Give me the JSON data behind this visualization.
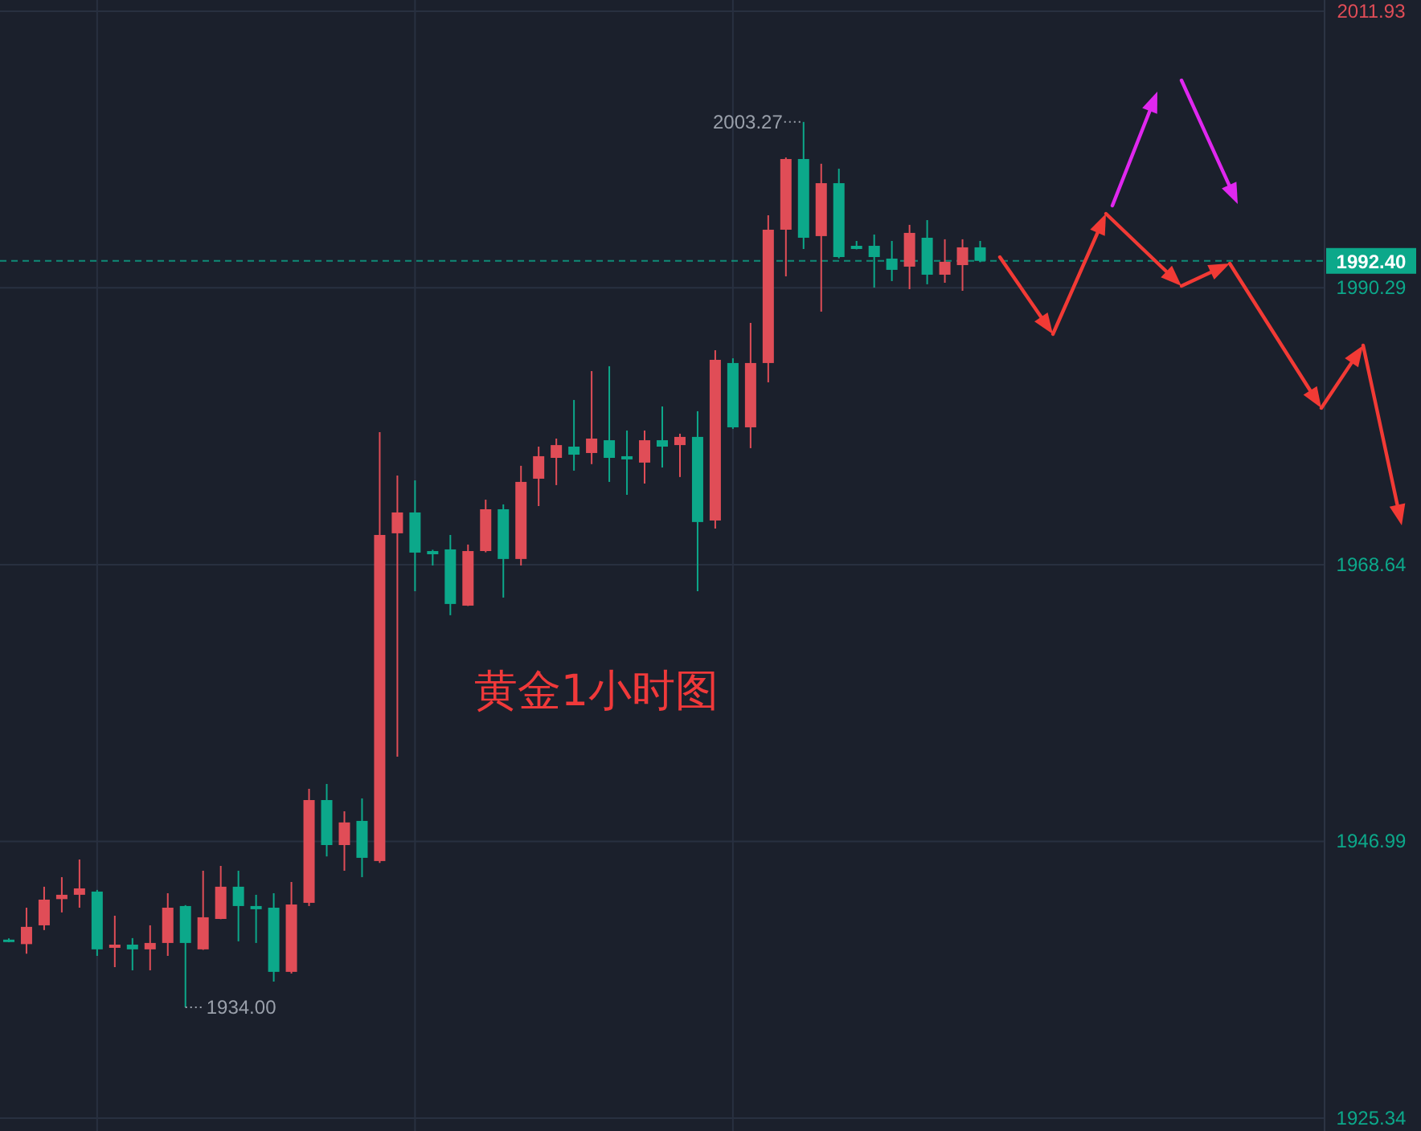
{
  "chart_data": {
    "type": "candlestick",
    "categories": [
      null,
      null,
      null,
      null,
      null,
      null,
      null,
      null,
      null,
      null,
      null,
      null,
      null,
      null,
      null,
      null,
      null,
      null,
      null,
      null,
      null,
      null,
      null,
      null,
      null,
      null,
      null,
      null,
      null,
      null,
      null,
      null,
      null,
      null,
      null,
      null,
      null,
      null,
      null,
      null,
      null,
      null,
      null,
      null,
      null,
      null,
      null,
      null,
      null,
      null,
      null,
      null,
      null,
      null,
      null,
      null,
      null,
      null,
      null,
      null,
      null,
      null,
      null,
      null,
      null,
      null,
      null,
      null,
      null,
      null,
      null,
      null,
      null,
      null,
      null
    ],
    "ohlc": [
      [
        1939.3,
        1939.4,
        1939.1,
        1939.2
      ],
      [
        1938.95,
        1941.8,
        1938.2,
        1940.3
      ],
      [
        1940.42,
        1943.44,
        1940.05,
        1942.43
      ],
      [
        1942.47,
        1944.19,
        1941.43,
        1942.81
      ],
      [
        1942.81,
        1945.57,
        1941.8,
        1943.31
      ],
      [
        1943.06,
        1943.19,
        1938.03,
        1938.54
      ],
      [
        1938.66,
        1941.17,
        1937.15,
        1938.91
      ],
      [
        1938.91,
        1939.42,
        1936.9,
        1938.54
      ],
      [
        1938.54,
        1940.42,
        1936.9,
        1939.04
      ],
      [
        1939.04,
        1942.93,
        1938.03,
        1941.8
      ],
      [
        1941.93,
        1942.0,
        1934.0,
        1939.04
      ],
      [
        1938.54,
        1944.69,
        1938.5,
        1941.05
      ],
      [
        1940.92,
        1945.07,
        1940.9,
        1943.44
      ],
      [
        1943.44,
        1944.69,
        1939.17,
        1941.93
      ],
      [
        1941.93,
        1942.81,
        1939.04,
        1941.68
      ],
      [
        1941.8,
        1942.93,
        1936.02,
        1936.78
      ],
      [
        1936.78,
        1943.81,
        1936.65,
        1942.05
      ],
      [
        1942.18,
        1951.1,
        1941.93,
        1950.22
      ],
      [
        1950.22,
        1951.48,
        1945.81,
        1946.7
      ],
      [
        1946.7,
        1949.34,
        1944.69,
        1948.47
      ],
      [
        1948.59,
        1950.35,
        1944.19,
        1945.7
      ],
      [
        1945.45,
        1979.0,
        1945.3,
        1970.96
      ],
      [
        1971.09,
        1975.61,
        1953.62,
        1972.72
      ],
      [
        1972.72,
        1975.23,
        1966.56,
        1969.58
      ],
      [
        1969.7,
        1969.8,
        1968.57,
        1969.45
      ],
      [
        1969.83,
        1970.96,
        1964.68,
        1965.56
      ],
      [
        1965.43,
        1970.21,
        1965.4,
        1969.7
      ],
      [
        1969.7,
        1973.72,
        1969.6,
        1972.97
      ],
      [
        1972.97,
        1973.35,
        1966.06,
        1969.08
      ],
      [
        1969.08,
        1976.37,
        1968.57,
        1975.11
      ],
      [
        1975.36,
        1977.87,
        1973.22,
        1977.12
      ],
      [
        1976.99,
        1978.5,
        1974.86,
        1977.99
      ],
      [
        1977.87,
        1981.52,
        1975.99,
        1977.24
      ],
      [
        1977.37,
        1983.78,
        1976.5,
        1978.5
      ],
      [
        1978.37,
        1984.16,
        1975.11,
        1976.99
      ],
      [
        1977.12,
        1979.13,
        1974.1,
        1976.87
      ],
      [
        1976.62,
        1979.13,
        1974.98,
        1978.37
      ],
      [
        1978.37,
        1981.02,
        1976.24,
        1977.87
      ],
      [
        1977.99,
        1978.88,
        1975.49,
        1978.63
      ],
      [
        1978.63,
        1980.64,
        1966.56,
        1971.97
      ],
      [
        1972.09,
        1985.41,
        1971.46,
        1984.66
      ],
      [
        1984.41,
        1984.78,
        1979.26,
        1979.38
      ],
      [
        1979.38,
        1987.55,
        1977.75,
        1984.41
      ],
      [
        1984.41,
        1995.97,
        1982.9,
        1994.84
      ],
      [
        1994.84,
        2000.49,
        1991.19,
        2000.37
      ],
      [
        2000.37,
        2003.27,
        1993.33,
        1994.21
      ],
      [
        1994.34,
        2000.0,
        1988.43,
        1998.48
      ],
      [
        1998.48,
        1999.61,
        1992.6,
        1992.7
      ],
      [
        1993.58,
        1993.96,
        1993.3,
        1993.33
      ],
      [
        1993.58,
        1994.46,
        1990.31,
        1992.7
      ],
      [
        1992.58,
        1993.96,
        1990.82,
        1991.7
      ],
      [
        1991.95,
        1995.22,
        1990.19,
        1994.59
      ],
      [
        1994.21,
        1995.59,
        1990.57,
        1991.32
      ],
      [
        1991.32,
        1994.09,
        1990.69,
        1992.33
      ],
      [
        1992.07,
        1994.09,
        1990.06,
        1993.46
      ],
      [
        1993.46,
        1993.96,
        1992.3,
        1992.4
      ],
      null,
      null,
      null,
      null,
      null,
      null,
      null,
      null,
      null,
      null,
      null,
      null,
      null,
      null,
      null,
      null,
      null,
      null,
      null
    ],
    "ylim": [
      1924.33,
      2012.81
    ],
    "yticks": [
      2011.93,
      1990.29,
      1968.64,
      1946.99,
      1925.34
    ],
    "grid": true,
    "tick_labels": "y",
    "ref_lines": [
      {
        "axis": "y",
        "value": 1992.4,
        "label": "1992.40",
        "color": "#0ca88a",
        "line_style": "dashed"
      }
    ],
    "annotations": [
      "2003.27",
      "1934.00",
      "黄金1小时图"
    ]
  }
}
